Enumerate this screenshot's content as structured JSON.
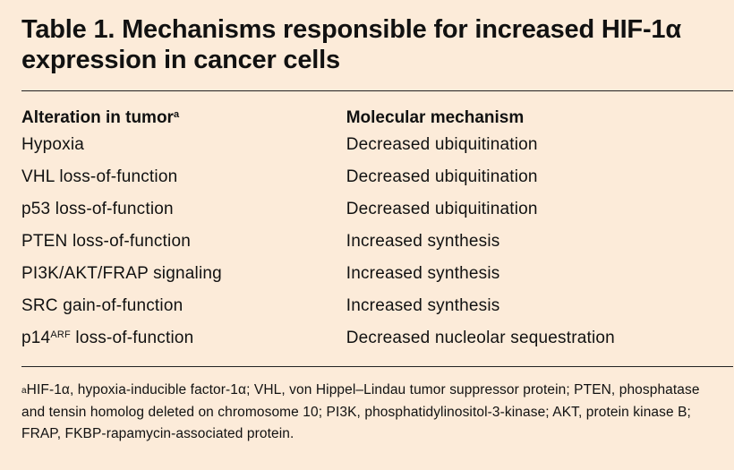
{
  "title": "Table 1. Mechanisms responsible for increased HIF-1α expression in cancer cells",
  "table": {
    "headers": {
      "col1": "Alteration in tumor",
      "col1_note_marker": "a",
      "col2": "Molecular mechanism"
    },
    "rows": [
      {
        "alteration": "Hypoxia",
        "mechanism": "Decreased ubiquitination"
      },
      {
        "alteration": "VHL loss-of-function",
        "mechanism": "Decreased ubiquitination"
      },
      {
        "alteration": "p53 loss-of-function",
        "mechanism": "Decreased ubiquitination"
      },
      {
        "alteration": "PTEN loss-of-function",
        "mechanism": "Increased synthesis"
      },
      {
        "alteration": "PI3K/AKT/FRAP signaling",
        "mechanism": "Increased synthesis"
      },
      {
        "alteration": "SRC gain-of-function",
        "mechanism": "Increased synthesis"
      },
      {
        "alteration_prefix": "p14",
        "alteration_sup": "ARF",
        "alteration_suffix": " loss-of-function",
        "mechanism": "Decreased nucleolar sequestration"
      }
    ]
  },
  "footnote": {
    "marker": "a",
    "text": "HIF-1α, hypoxia-inducible factor-1α; VHL, von Hippel–Lindau tumor suppressor protein; PTEN, phosphatase and tensin homolog deleted on chromosome 10; PI3K, phosphatidylinositol-3-kinase; AKT, protein kinase B; FRAP, FKBP-rapamycin-associated protein."
  }
}
